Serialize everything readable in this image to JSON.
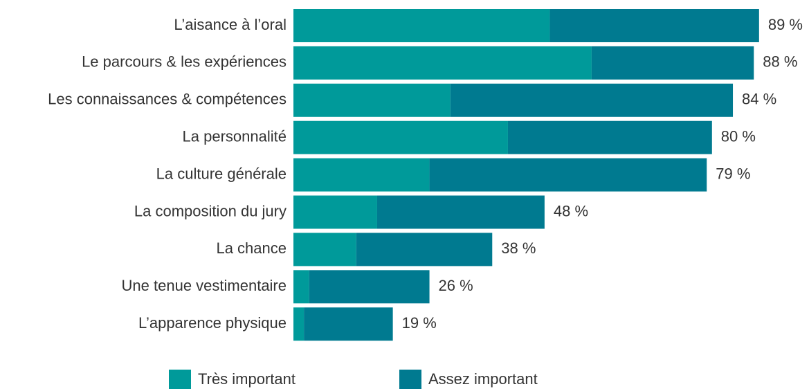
{
  "chart_data": {
    "type": "stacked_bar_horizontal",
    "categories": [
      "L’aisance à l’oral",
      "Le parcours & les expériences",
      "Les connaissances & compétences",
      "La personnalité",
      "La culture générale",
      "La composition du jury",
      "La chance",
      "Une tenue vestimentaire",
      "L’apparence physique"
    ],
    "series": [
      {
        "name": "Très important",
        "color": "#009a9a",
        "values": [
          49,
          57,
          30,
          41,
          26,
          16,
          12,
          3,
          2
        ]
      },
      {
        "name": "Assez important",
        "color": "#007a90",
        "values": [
          40,
          31,
          54,
          39,
          53,
          32,
          26,
          23,
          17
        ]
      }
    ],
    "total_labels": [
      "89 %",
      "88 %",
      "84 %",
      "80 %",
      "79 %",
      "48 %",
      "38 %",
      "26 %",
      "19 %"
    ],
    "xlim": [
      0,
      100
    ],
    "legend": "bottom"
  }
}
